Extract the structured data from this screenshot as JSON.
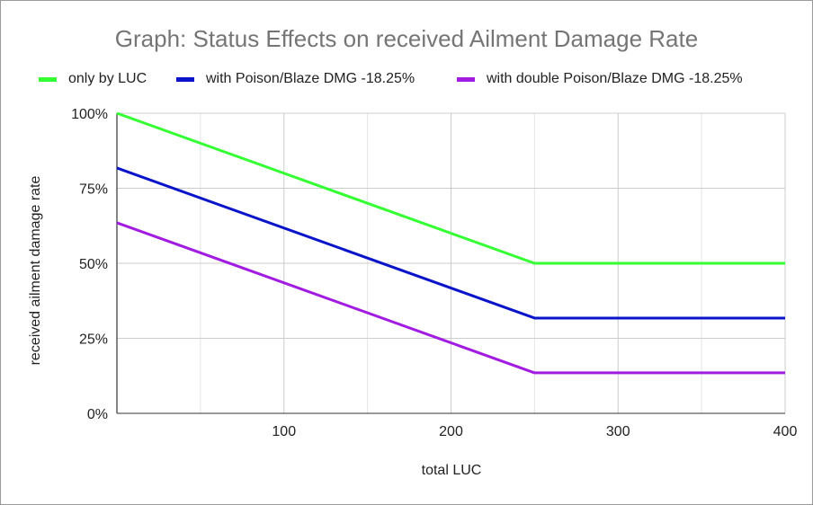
{
  "title": "Graph: Status Effects on received Ailment Damage Rate",
  "legend": [
    {
      "label": "only by LUC",
      "color": "#33ff33"
    },
    {
      "label": "with Poison/Blaze DMG -18.25%",
      "color": "#0a14c8"
    },
    {
      "label": "with double Poison/Blaze DMG -18.25%",
      "color": "#a21be0"
    }
  ],
  "chart_data": {
    "type": "line",
    "title": "Graph: Status Effects on received Ailment Damage Rate",
    "xlabel": "total LUC",
    "ylabel": "received ailment damage rate",
    "xlim": [
      0,
      400
    ],
    "ylim": [
      0,
      100
    ],
    "x_ticks": [
      100,
      200,
      300,
      400
    ],
    "x_tick_labels": [
      "100",
      "200",
      "300",
      "400"
    ],
    "y_ticks": [
      0,
      25,
      50,
      75,
      100
    ],
    "y_tick_labels": [
      "0%",
      "25%",
      "50%",
      "75%",
      "100%"
    ],
    "grid": true,
    "legend_position": "top",
    "series": [
      {
        "name": "only by LUC",
        "color": "#33ff33",
        "x": [
          0,
          250,
          400
        ],
        "y": [
          100,
          50,
          50
        ]
      },
      {
        "name": "with Poison/Blaze DMG -18.25%",
        "color": "#0a14c8",
        "x": [
          0,
          250,
          400
        ],
        "y": [
          81.75,
          31.75,
          31.75
        ]
      },
      {
        "name": "with double Poison/Blaze DMG -18.25%",
        "color": "#a21be0",
        "x": [
          0,
          250,
          400
        ],
        "y": [
          63.5,
          13.5,
          13.5
        ]
      }
    ]
  }
}
